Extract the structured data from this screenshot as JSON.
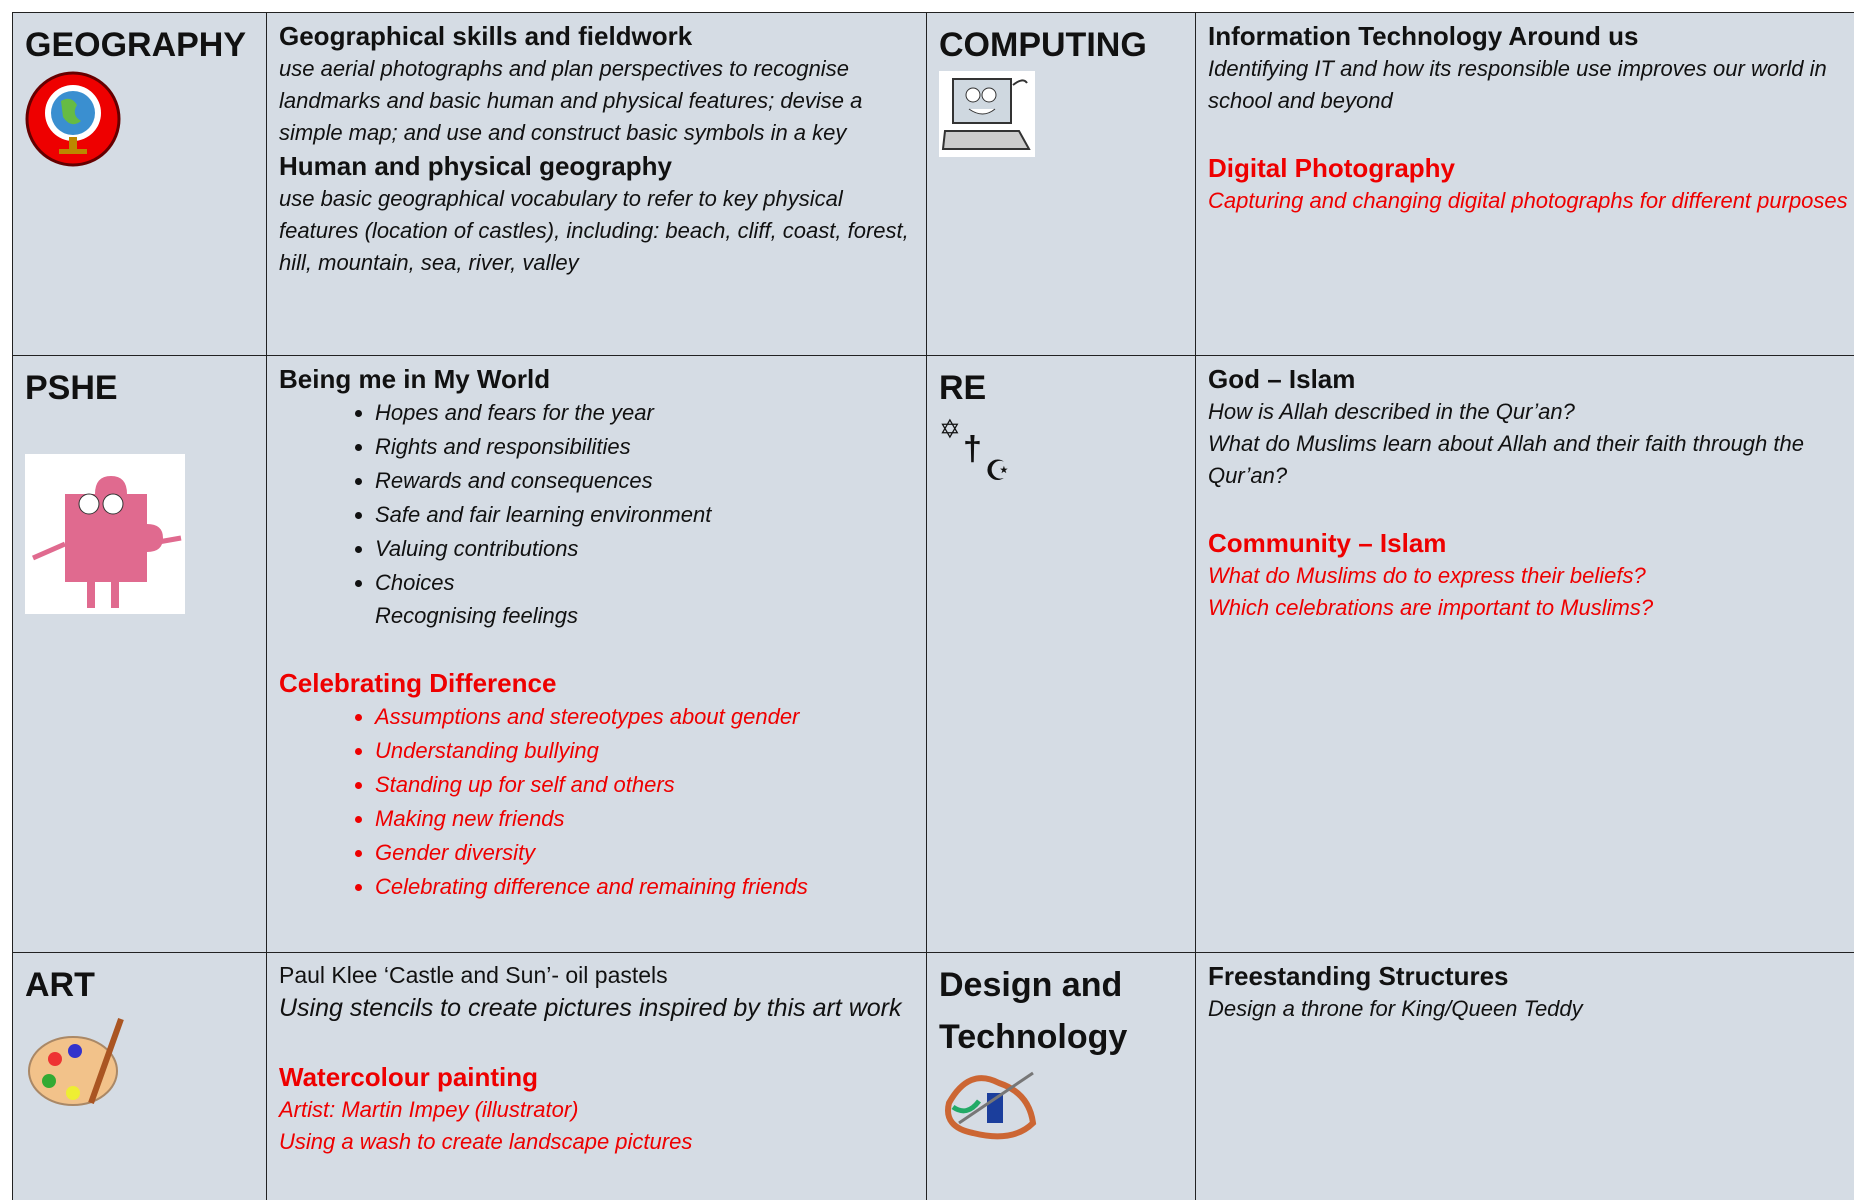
{
  "cells": [
    {
      "subject": "GEOGRAPHY",
      "sections": [
        {
          "heading": "Geographical skills and fieldwork",
          "lines": [
            "use aerial photographs and plan perspectives to recognise landmarks and basic human and physical features; devise a simple map; and use and construct basic symbols in a key"
          ]
        },
        {
          "heading": "Human and physical geography",
          "lines": [
            "use basic geographical vocabulary to refer to key physical features (location of castles), including: beach, cliff, coast, forest, hill, mountain, sea, river, valley"
          ]
        }
      ]
    },
    {
      "subject": "COMPUTING",
      "sections": [
        {
          "heading": "Information Technology Around us",
          "lines": [
            "Identifying IT and how its responsible use improves our world in school and beyond"
          ]
        },
        {
          "heading": "Digital Photography",
          "color": "#ee0000",
          "lines": [
            "Capturing and changing digital photographs for different purposes"
          ]
        }
      ]
    },
    {
      "subject": "PSHE",
      "sections": [
        {
          "heading": "Being me in My World",
          "bullets": [
            "Hopes and fears for the year",
            "Rights and responsibilities",
            "Rewards and consequences",
            "Safe and fair learning environment",
            "Valuing contributions",
            "Choices"
          ],
          "indented": [
            "Recognising feelings"
          ]
        },
        {
          "heading": "Celebrating Difference",
          "color": "#ee0000",
          "bullets": [
            "Assumptions and stereotypes about gender",
            "Understanding bullying",
            "Standing up for self and others",
            "Making new friends",
            "Gender diversity",
            "Celebrating difference and remaining friends"
          ]
        }
      ]
    },
    {
      "subject": "RE",
      "sections": [
        {
          "heading": "God – Islam",
          "lines": [
            "How is Allah described in the Qur’an?",
            "What do Muslims learn about Allah and their faith through the Qur’an?"
          ]
        },
        {
          "heading": "Community – Islam",
          "color": "#ee0000",
          "lines": [
            "What do Muslims do to express their beliefs?",
            "Which celebrations are important to Muslims?"
          ]
        }
      ]
    },
    {
      "subject": "ART",
      "sections": [
        {
          "plain": "Paul Klee ‘Castle and Sun’- oil pastels",
          "lines": [
            "Using stencils to create pictures inspired by this art work"
          ]
        },
        {
          "heading": "Watercolour painting",
          "color": "#ee0000",
          "lines": [
            "Artist: Martin Impey (illustrator)",
            "Using a wash to create landscape pictures"
          ]
        }
      ]
    },
    {
      "subject": "Design and Technology",
      "sections": [
        {
          "heading": "Freestanding Structures",
          "lines": [
            "Design a throne for King/Queen Teddy"
          ]
        }
      ]
    }
  ]
}
